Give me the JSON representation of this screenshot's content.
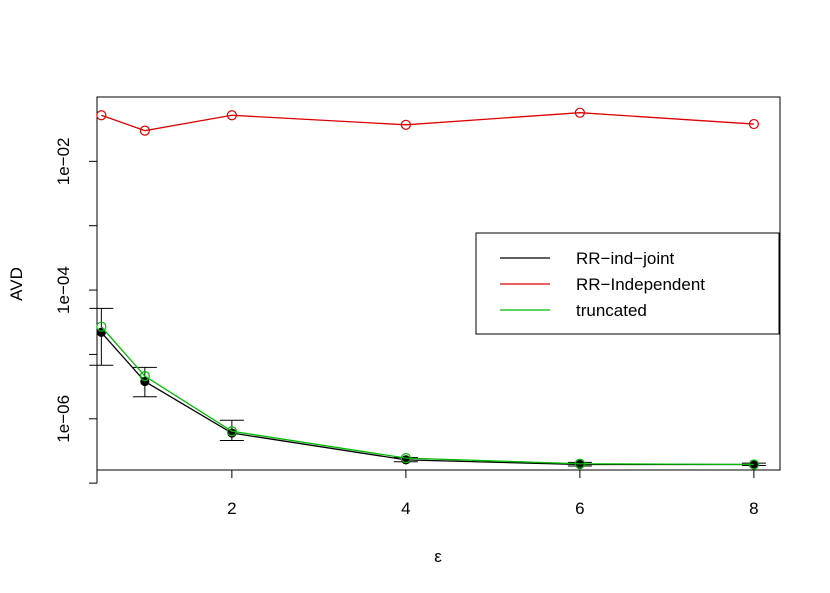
{
  "chart_data": {
    "type": "line",
    "xlabel": "ε",
    "ylabel": "AVD",
    "x_scale": "linear",
    "y_scale": "log",
    "xlim": [
      0.45,
      8.3
    ],
    "ylim": [
      1.6e-07,
      0.1
    ],
    "x_ticks": [
      2,
      4,
      6,
      8
    ],
    "x_tick_labels": [
      "2",
      "4",
      "6",
      "8"
    ],
    "y_ticks": [
      1e-07,
      1e-06,
      1e-05,
      0.0001,
      0.001,
      0.01
    ],
    "y_tick_labels": [
      "",
      "1e−06",
      "",
      "1e−04",
      "",
      "1e−02"
    ],
    "grid": false,
    "legend_position": "right",
    "x": [
      0.5,
      1,
      2,
      4,
      6,
      8
    ],
    "series": [
      {
        "name": "RR−ind−joint",
        "color": "#000000",
        "marker": "filled-circle",
        "values": [
          2.2e-05,
          3.8e-06,
          6e-07,
          2.3e-07,
          1.95e-07,
          1.95e-07
        ],
        "error_low": [
          6.8e-06,
          2.2e-06,
          4.6e-07,
          2.15e-07,
          1.85e-07,
          1.88e-07
        ],
        "error_high": [
          5.2e-05,
          6.3e-06,
          9.5e-07,
          2.5e-07,
          2.1e-07,
          2.05e-07
        ]
      },
      {
        "name": "RR−Independent",
        "color": "#dd0000",
        "marker": "open-circle",
        "values": [
          0.052,
          0.03,
          0.052,
          0.037,
          0.057,
          0.038
        ]
      },
      {
        "name": "truncated",
        "color": "#00bb00",
        "marker": "open-circle",
        "values": [
          2.7e-05,
          4.6e-06,
          6.4e-07,
          2.45e-07,
          2e-07,
          1.95e-07
        ]
      }
    ]
  }
}
